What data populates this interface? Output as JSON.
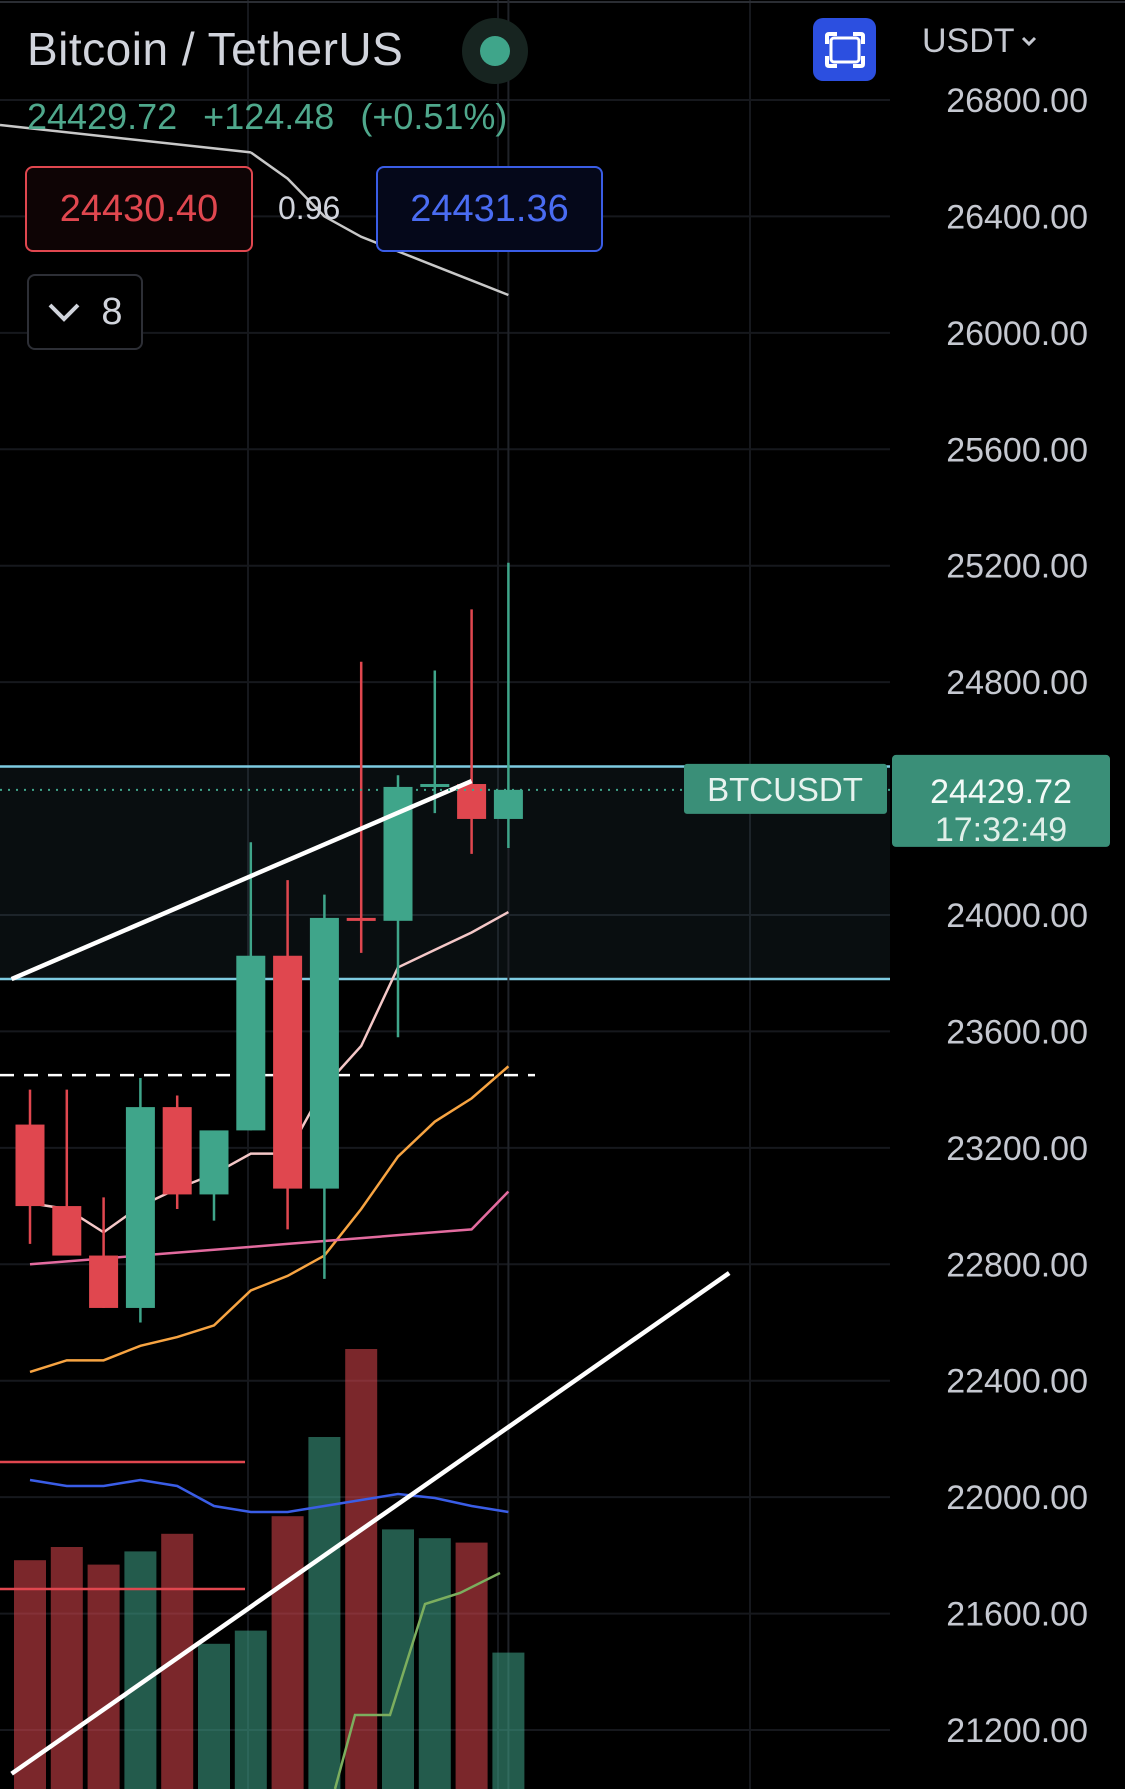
{
  "header": {
    "symbol_name": "Bitcoin / TetherUS",
    "last_price": "24429.72",
    "change": "+124.48",
    "change_pct": "(+0.51%)",
    "sell_price": "24430.40",
    "spread": "0.96",
    "buy_price": "24431.36",
    "indicators_count": "8",
    "currency": "USDT",
    "fullscreen_icon": "fullscreen-icon"
  },
  "chart_data": {
    "type": "candlestick",
    "yaxis": {
      "ticks": [
        26800,
        26400,
        26000,
        25600,
        25200,
        24800,
        24000,
        23600,
        23200,
        22800,
        22400,
        22000,
        21600,
        21200
      ],
      "tick_labels": [
        "26800.00",
        "26400.00",
        "26000.00",
        "25600.00",
        "25200.00",
        "24800.00",
        "24000.00",
        "23600.00",
        "23200.00",
        "22800.00",
        "22400.00",
        "22000.00",
        "21600.00",
        "21200.00"
      ],
      "ylim": [
        21050,
        26980
      ]
    },
    "last_price_label": {
      "symbol": "BTCUSDT",
      "price": "24429.72",
      "countdown": "17:32:49",
      "value": 24429.72
    },
    "candles": [
      {
        "o": 23280,
        "h": 23400,
        "l": 22870,
        "c": 23000
      },
      {
        "o": 23000,
        "h": 23400,
        "l": 22840,
        "c": 22830
      },
      {
        "o": 22830,
        "h": 23030,
        "l": 22650,
        "c": 22650
      },
      {
        "o": 22650,
        "h": 23440,
        "l": 22600,
        "c": 23340
      },
      {
        "o": 23340,
        "h": 23380,
        "l": 22990,
        "c": 23040
      },
      {
        "o": 23040,
        "h": 23250,
        "l": 22950,
        "c": 23260
      },
      {
        "o": 23260,
        "h": 24250,
        "l": 23260,
        "c": 23860
      },
      {
        "o": 23860,
        "h": 24120,
        "l": 22920,
        "c": 23060
      },
      {
        "o": 23060,
        "h": 24070,
        "l": 22750,
        "c": 23990
      },
      {
        "o": 23990,
        "h": 24870,
        "l": 23870,
        "c": 23980
      },
      {
        "o": 23980,
        "h": 24480,
        "l": 23580,
        "c": 24440
      },
      {
        "o": 24440,
        "h": 24840,
        "l": 24350,
        "c": 24450
      },
      {
        "o": 24450,
        "h": 25050,
        "l": 24210,
        "c": 24330
      },
      {
        "o": 24330,
        "h": 25210,
        "l": 24230,
        "c": 24430
      }
    ],
    "volume_ratio": [
      0.52,
      0.55,
      0.51,
      0.54,
      0.58,
      0.33,
      0.36,
      0.62,
      0.8,
      1.0,
      0.59,
      0.57,
      0.56,
      0.31
    ],
    "moving_averages": [
      {
        "color": "#f4c7c7",
        "values": [
          23010,
          22990,
          22910,
          23000,
          23060,
          23110,
          23180,
          23180,
          23410,
          23550,
          23820,
          23880,
          23940,
          24010
        ]
      },
      {
        "color": "#f7a442",
        "values": [
          22430,
          22470,
          22470,
          22520,
          22550,
          22590,
          22710,
          22760,
          22830,
          22990,
          23170,
          23290,
          23370,
          23480
        ]
      },
      {
        "color": "#e36b9f",
        "values": [
          22800,
          22810,
          22820,
          22830,
          22840,
          22850,
          22860,
          22870,
          22880,
          22890,
          22900,
          22910,
          22920,
          23050
        ]
      },
      {
        "color": "#c8c8c8",
        "values": [
          null,
          null,
          null,
          null,
          null,
          null,
          26620,
          26530,
          26400,
          26330,
          26280,
          26230,
          26180,
          26130
        ]
      }
    ],
    "zone": {
      "top": 24510,
      "bottom": 23780,
      "color": "#7ecbe1"
    },
    "dashed_level": 23450,
    "trendlines": [
      {
        "from": {
          "i": -0.5,
          "v": 23780
        },
        "to": {
          "i": 12,
          "v": 24460
        }
      },
      {
        "from": {
          "i": -0.5,
          "v": 21050
        },
        "to": {
          "i": 19,
          "v": 22770
        }
      }
    ]
  }
}
